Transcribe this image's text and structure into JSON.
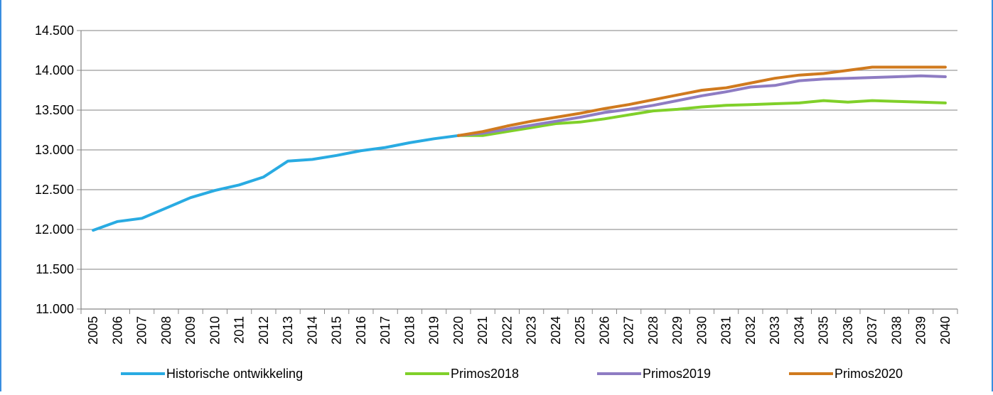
{
  "chart_data": {
    "type": "line",
    "title": "",
    "xlabel": "",
    "ylabel": "",
    "ylim": [
      11000,
      14500
    ],
    "yticks": [
      "11.000",
      "11.500",
      "12.000",
      "12.500",
      "13.000",
      "13.500",
      "14.000",
      "14.500"
    ],
    "categories": [
      "2005",
      "2006",
      "2007",
      "2008",
      "2009",
      "2010",
      "2011",
      "2012",
      "2013",
      "2014",
      "2015",
      "2016",
      "2017",
      "2018",
      "2019",
      "2020",
      "2021",
      "2022",
      "2023",
      "2024",
      "2025",
      "2026",
      "2027",
      "2028",
      "2029",
      "2030",
      "2031",
      "2032",
      "2033",
      "2034",
      "2035",
      "2036",
      "2037",
      "2038",
      "2039",
      "2040"
    ],
    "grid": true,
    "legend_position": "bottom",
    "series": [
      {
        "name": "Historische ontwikkeling",
        "color": "#29abe2",
        "values": [
          11990,
          12100,
          12140,
          12270,
          12400,
          12490,
          12560,
          12660,
          12860,
          12880,
          12930,
          12990,
          13030,
          13090,
          13140,
          13180,
          null,
          null,
          null,
          null,
          null,
          null,
          null,
          null,
          null,
          null,
          null,
          null,
          null,
          null,
          null,
          null,
          null,
          null,
          null,
          null
        ]
      },
      {
        "name": "Primos2018",
        "color": "#80d02a",
        "values": [
          null,
          null,
          null,
          null,
          null,
          null,
          null,
          null,
          null,
          null,
          null,
          null,
          null,
          null,
          null,
          13180,
          13180,
          13230,
          13280,
          13330,
          13350,
          13390,
          13440,
          13490,
          13510,
          13540,
          13560,
          13570,
          13580,
          13590,
          13620,
          13600,
          13620,
          13610,
          13600,
          13590
        ]
      },
      {
        "name": "Primos2019",
        "color": "#8e7cc3",
        "values": [
          null,
          null,
          null,
          null,
          null,
          null,
          null,
          null,
          null,
          null,
          null,
          null,
          null,
          null,
          null,
          13180,
          13210,
          13260,
          13310,
          13360,
          13410,
          13470,
          13510,
          13560,
          13620,
          13680,
          13730,
          13790,
          13810,
          13870,
          13890,
          13900,
          13910,
          13920,
          13930,
          13920
        ]
      },
      {
        "name": "Primos2020",
        "color": "#d07a1e",
        "values": [
          null,
          null,
          null,
          null,
          null,
          null,
          null,
          null,
          null,
          null,
          null,
          null,
          null,
          null,
          null,
          13180,
          13230,
          13300,
          13360,
          13410,
          13460,
          13520,
          13570,
          13630,
          13690,
          13750,
          13780,
          13840,
          13900,
          13940,
          13960,
          14000,
          14040,
          14040,
          14040,
          14040
        ]
      }
    ]
  }
}
